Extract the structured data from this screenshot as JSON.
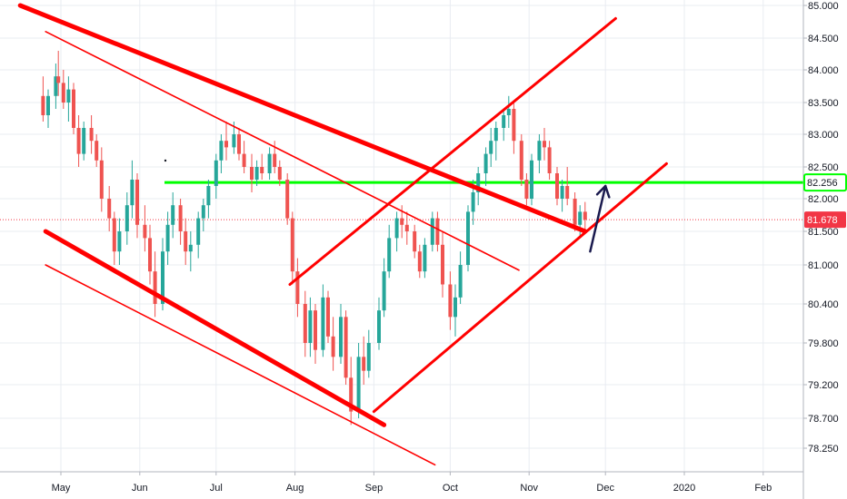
{
  "chart_data": {
    "type": "candlestick",
    "x_axis": {
      "labels": [
        "May",
        "Jun",
        "Jul",
        "Aug",
        "Sep",
        "Oct",
        "Nov",
        "Dec",
        "2020",
        "Feb"
      ],
      "grid": true
    },
    "y_axis": {
      "position": "right",
      "ylim": [
        77.9,
        85.0
      ],
      "tick_labels": [
        "85.000",
        "84.500",
        "84.000",
        "83.500",
        "83.000",
        "82.500",
        "82.000",
        "81.500",
        "81.000",
        "80.400",
        "79.800",
        "79.200",
        "78.700",
        "78.250"
      ],
      "tick_values": [
        85.0,
        84.5,
        84.0,
        83.5,
        83.0,
        82.5,
        82.0,
        81.5,
        81.0,
        80.4,
        79.8,
        79.2,
        78.7,
        78.25
      ],
      "grid": true
    },
    "price_badges": [
      {
        "value": 82.256,
        "label": "82.256",
        "style": "outline",
        "color": "#00ff00"
      },
      {
        "value": 81.678,
        "label": "81.678",
        "style": "filled",
        "color": "#f23645"
      }
    ],
    "horizontal_levels": [
      {
        "value": 82.256,
        "color": "#00ff00",
        "style": "solid"
      },
      {
        "value": 81.678,
        "color": "#f23645",
        "style": "dotted"
      }
    ],
    "colors": {
      "up": "#26a69a",
      "down": "#ef5350",
      "trendline": "#ff0000",
      "arrow": "#1a1a4e",
      "grid": "#e9ecf2",
      "axis_text": "#131722"
    },
    "annotations": [
      {
        "type": "trendline",
        "name": "descending-channel-thick-upper",
        "from": [
          "Apr 15",
          85.0
        ],
        "to": [
          "Nov 23",
          81.5
        ],
        "weight": "thick"
      },
      {
        "type": "trendline",
        "name": "descending-channel-thin-upper",
        "from": [
          "Apr 25",
          84.6
        ],
        "to": [
          "Oct 28",
          80.92
        ],
        "weight": "thin"
      },
      {
        "type": "trendline",
        "name": "descending-channel-thick-lower",
        "from": [
          "Apr 25",
          81.5
        ],
        "to": [
          "Sep 05",
          78.6
        ],
        "weight": "thick"
      },
      {
        "type": "trendline",
        "name": "descending-channel-thin-lower",
        "from": [
          "Apr 25",
          81.0
        ],
        "to": [
          "Sep 25",
          78.0
        ],
        "weight": "thin"
      },
      {
        "type": "trendline",
        "name": "ascending-channel-upper",
        "from": [
          "Jul 30",
          80.7
        ],
        "to": [
          "Dec 05",
          84.8
        ],
        "weight": "normal"
      },
      {
        "type": "trendline",
        "name": "ascending-channel-lower",
        "from": [
          "Sep 01",
          78.8
        ],
        "to": [
          "Dec 25",
          82.55
        ],
        "weight": "normal"
      },
      {
        "type": "arrow",
        "name": "bounce-arrow",
        "from": [
          "Nov 25",
          81.2
        ],
        "to": [
          "Dec 01",
          82.2
        ]
      }
    ],
    "candles": [
      {
        "date": "Apr 24",
        "open": 83.6,
        "high": 83.9,
        "low": 83.2,
        "close": 83.3
      },
      {
        "date": "Apr 26",
        "open": 83.3,
        "high": 83.7,
        "low": 83.1,
        "close": 83.6
      },
      {
        "date": "Apr 29",
        "open": 83.6,
        "high": 84.1,
        "low": 83.4,
        "close": 83.9
      },
      {
        "date": "Apr 30",
        "open": 83.9,
        "high": 84.3,
        "low": 83.6,
        "close": 83.8
      },
      {
        "date": "May 02",
        "open": 83.8,
        "high": 84.0,
        "low": 83.4,
        "close": 83.5
      },
      {
        "date": "May 04",
        "open": 83.5,
        "high": 83.9,
        "low": 83.2,
        "close": 83.7
      },
      {
        "date": "May 06",
        "open": 83.7,
        "high": 83.8,
        "low": 83.0,
        "close": 83.1
      },
      {
        "date": "May 08",
        "open": 83.1,
        "high": 83.3,
        "low": 82.5,
        "close": 82.7
      },
      {
        "date": "May 10",
        "open": 82.7,
        "high": 83.2,
        "low": 82.6,
        "close": 83.1
      },
      {
        "date": "May 13",
        "open": 83.1,
        "high": 83.3,
        "low": 82.7,
        "close": 82.9
      },
      {
        "date": "May 15",
        "open": 82.9,
        "high": 83.0,
        "low": 82.5,
        "close": 82.6
      },
      {
        "date": "May 17",
        "open": 82.6,
        "high": 82.8,
        "low": 81.8,
        "close": 82.0
      },
      {
        "date": "May 20",
        "open": 82.0,
        "high": 82.2,
        "low": 81.5,
        "close": 81.7
      },
      {
        "date": "May 22",
        "open": 81.7,
        "high": 81.8,
        "low": 81.0,
        "close": 81.2
      },
      {
        "date": "May 24",
        "open": 81.2,
        "high": 81.7,
        "low": 81.0,
        "close": 81.5
      },
      {
        "date": "May 27",
        "open": 81.5,
        "high": 82.1,
        "low": 81.3,
        "close": 81.9
      },
      {
        "date": "May 29",
        "open": 81.9,
        "high": 82.6,
        "low": 81.7,
        "close": 82.3
      },
      {
        "date": "May 31",
        "open": 82.3,
        "high": 82.4,
        "low": 81.4,
        "close": 81.6
      },
      {
        "date": "Jun 03",
        "open": 81.6,
        "high": 81.9,
        "low": 81.2,
        "close": 81.4
      },
      {
        "date": "Jun 05",
        "open": 81.4,
        "high": 81.6,
        "low": 80.7,
        "close": 80.9
      },
      {
        "date": "Jun 07",
        "open": 80.9,
        "high": 81.2,
        "low": 80.2,
        "close": 80.4
      },
      {
        "date": "Jun 10",
        "open": 80.4,
        "high": 81.4,
        "low": 80.3,
        "close": 81.2
      },
      {
        "date": "Jun 12",
        "open": 81.2,
        "high": 81.8,
        "low": 81.0,
        "close": 81.6
      },
      {
        "date": "Jun 14",
        "open": 81.6,
        "high": 82.1,
        "low": 81.4,
        "close": 81.9
      },
      {
        "date": "Jun 17",
        "open": 81.9,
        "high": 82.0,
        "low": 81.3,
        "close": 81.5
      },
      {
        "date": "Jun 19",
        "open": 81.5,
        "high": 81.7,
        "low": 81.0,
        "close": 81.2
      },
      {
        "date": "Jun 21",
        "open": 81.2,
        "high": 81.5,
        "low": 80.9,
        "close": 81.3
      },
      {
        "date": "Jun 24",
        "open": 81.3,
        "high": 81.8,
        "low": 81.1,
        "close": 81.7
      },
      {
        "date": "Jun 26",
        "open": 81.7,
        "high": 82.0,
        "low": 81.5,
        "close": 81.9
      },
      {
        "date": "Jun 28",
        "open": 81.9,
        "high": 82.3,
        "low": 81.7,
        "close": 82.2
      },
      {
        "date": "Jul 01",
        "open": 82.2,
        "high": 82.7,
        "low": 82.0,
        "close": 82.6
      },
      {
        "date": "Jul 03",
        "open": 82.6,
        "high": 83.0,
        "low": 82.4,
        "close": 82.9
      },
      {
        "date": "Jul 05",
        "open": 82.9,
        "high": 83.2,
        "low": 82.6,
        "close": 82.8
      },
      {
        "date": "Jul 08",
        "open": 82.8,
        "high": 83.2,
        "low": 82.7,
        "close": 83.0
      },
      {
        "date": "Jul 10",
        "open": 83.0,
        "high": 83.1,
        "low": 82.6,
        "close": 82.7
      },
      {
        "date": "Jul 12",
        "open": 82.7,
        "high": 82.9,
        "low": 82.4,
        "close": 82.5
      },
      {
        "date": "Jul 15",
        "open": 82.5,
        "high": 82.7,
        "low": 82.1,
        "close": 82.3
      },
      {
        "date": "Jul 17",
        "open": 82.3,
        "high": 82.6,
        "low": 82.2,
        "close": 82.5
      },
      {
        "date": "Jul 19",
        "open": 82.5,
        "high": 82.7,
        "low": 82.3,
        "close": 82.4
      },
      {
        "date": "Jul 22",
        "open": 82.4,
        "high": 82.8,
        "low": 82.3,
        "close": 82.7
      },
      {
        "date": "Jul 24",
        "open": 82.7,
        "high": 82.9,
        "low": 82.4,
        "close": 82.5
      },
      {
        "date": "Jul 26",
        "open": 82.5,
        "high": 82.6,
        "low": 82.2,
        "close": 82.3
      },
      {
        "date": "Jul 29",
        "open": 82.3,
        "high": 82.4,
        "low": 81.6,
        "close": 81.7
      },
      {
        "date": "Jul 31",
        "open": 81.7,
        "high": 81.8,
        "low": 80.7,
        "close": 80.9
      },
      {
        "date": "Aug 02",
        "open": 80.9,
        "high": 81.1,
        "low": 80.2,
        "close": 80.4
      },
      {
        "date": "Aug 05",
        "open": 80.4,
        "high": 80.6,
        "low": 79.6,
        "close": 79.8
      },
      {
        "date": "Aug 07",
        "open": 79.8,
        "high": 80.5,
        "low": 79.6,
        "close": 80.3
      },
      {
        "date": "Aug 09",
        "open": 80.3,
        "high": 80.4,
        "low": 79.5,
        "close": 79.7
      },
      {
        "date": "Aug 12",
        "open": 79.7,
        "high": 80.7,
        "low": 79.6,
        "close": 80.5
      },
      {
        "date": "Aug 14",
        "open": 80.5,
        "high": 80.6,
        "low": 79.8,
        "close": 79.9
      },
      {
        "date": "Aug 16",
        "open": 79.9,
        "high": 80.2,
        "low": 79.4,
        "close": 79.6
      },
      {
        "date": "Aug 19",
        "open": 79.6,
        "high": 80.4,
        "low": 79.5,
        "close": 80.2
      },
      {
        "date": "Aug 21",
        "open": 80.2,
        "high": 80.3,
        "low": 79.2,
        "close": 79.3
      },
      {
        "date": "Aug 23",
        "open": 79.3,
        "high": 79.6,
        "low": 78.6,
        "close": 78.8
      },
      {
        "date": "Aug 26",
        "open": 78.8,
        "high": 79.8,
        "low": 78.7,
        "close": 79.6
      },
      {
        "date": "Aug 28",
        "open": 79.6,
        "high": 79.9,
        "low": 79.2,
        "close": 79.4
      },
      {
        "date": "Aug 30",
        "open": 79.4,
        "high": 80.0,
        "low": 79.3,
        "close": 79.8
      },
      {
        "date": "Sep 03",
        "open": 79.8,
        "high": 80.5,
        "low": 79.7,
        "close": 80.3
      },
      {
        "date": "Sep 05",
        "open": 80.3,
        "high": 81.1,
        "low": 80.2,
        "close": 80.9
      },
      {
        "date": "Sep 07",
        "open": 80.9,
        "high": 81.6,
        "low": 80.8,
        "close": 81.4
      },
      {
        "date": "Sep 10",
        "open": 81.4,
        "high": 81.8,
        "low": 81.2,
        "close": 81.7
      },
      {
        "date": "Sep 12",
        "open": 81.7,
        "high": 81.9,
        "low": 81.4,
        "close": 81.6
      },
      {
        "date": "Sep 14",
        "open": 81.6,
        "high": 81.8,
        "low": 81.3,
        "close": 81.5
      },
      {
        "date": "Sep 17",
        "open": 81.5,
        "high": 81.6,
        "low": 81.1,
        "close": 81.2
      },
      {
        "date": "Sep 19",
        "open": 81.2,
        "high": 81.3,
        "low": 80.8,
        "close": 80.9
      },
      {
        "date": "Sep 21",
        "open": 80.9,
        "high": 81.4,
        "low": 80.8,
        "close": 81.3
      },
      {
        "date": "Sep 24",
        "open": 81.3,
        "high": 81.8,
        "low": 81.2,
        "close": 81.7
      },
      {
        "date": "Sep 26",
        "open": 81.7,
        "high": 81.8,
        "low": 81.2,
        "close": 81.3
      },
      {
        "date": "Sep 28",
        "open": 81.3,
        "high": 81.5,
        "low": 80.5,
        "close": 80.7
      },
      {
        "date": "Oct 01",
        "open": 80.7,
        "high": 80.9,
        "low": 80.0,
        "close": 80.2
      },
      {
        "date": "Oct 03",
        "open": 80.2,
        "high": 80.7,
        "low": 79.9,
        "close": 80.5
      },
      {
        "date": "Oct 05",
        "open": 80.5,
        "high": 81.2,
        "low": 80.4,
        "close": 81.0
      },
      {
        "date": "Oct 08",
        "open": 81.0,
        "high": 81.9,
        "low": 80.9,
        "close": 81.8
      },
      {
        "date": "Oct 10",
        "open": 81.8,
        "high": 82.3,
        "low": 81.6,
        "close": 82.1
      },
      {
        "date": "Oct 12",
        "open": 82.1,
        "high": 82.5,
        "low": 81.9,
        "close": 82.4
      },
      {
        "date": "Oct 15",
        "open": 82.4,
        "high": 82.8,
        "low": 82.2,
        "close": 82.7
      },
      {
        "date": "Oct 17",
        "open": 82.7,
        "high": 83.1,
        "low": 82.5,
        "close": 82.9
      },
      {
        "date": "Oct 19",
        "open": 82.9,
        "high": 83.2,
        "low": 82.6,
        "close": 83.1
      },
      {
        "date": "Oct 22",
        "open": 83.1,
        "high": 83.4,
        "low": 82.9,
        "close": 83.3
      },
      {
        "date": "Oct 24",
        "open": 83.3,
        "high": 83.6,
        "low": 83.1,
        "close": 83.4
      },
      {
        "date": "Oct 26",
        "open": 83.4,
        "high": 83.5,
        "low": 82.7,
        "close": 82.9
      },
      {
        "date": "Oct 29",
        "open": 82.9,
        "high": 83.0,
        "low": 82.2,
        "close": 82.3
      },
      {
        "date": "Oct 31",
        "open": 82.3,
        "high": 82.4,
        "low": 81.9,
        "close": 82.0
      },
      {
        "date": "Nov 02",
        "open": 82.0,
        "high": 82.7,
        "low": 81.9,
        "close": 82.6
      },
      {
        "date": "Nov 05",
        "open": 82.6,
        "high": 83.0,
        "low": 82.4,
        "close": 82.9
      },
      {
        "date": "Nov 07",
        "open": 82.9,
        "high": 83.1,
        "low": 82.6,
        "close": 82.8
      },
      {
        "date": "Nov 09",
        "open": 82.8,
        "high": 82.9,
        "low": 82.3,
        "close": 82.4
      },
      {
        "date": "Nov 12",
        "open": 82.4,
        "high": 82.5,
        "low": 81.9,
        "close": 82.0
      },
      {
        "date": "Nov 14",
        "open": 82.0,
        "high": 82.3,
        "low": 81.8,
        "close": 82.2
      },
      {
        "date": "Nov 16",
        "open": 82.2,
        "high": 82.5,
        "low": 81.9,
        "close": 82.0
      },
      {
        "date": "Nov 19",
        "open": 82.0,
        "high": 82.1,
        "low": 81.5,
        "close": 81.6
      },
      {
        "date": "Nov 21",
        "open": 81.6,
        "high": 81.9,
        "low": 81.4,
        "close": 81.8
      },
      {
        "date": "Nov 23",
        "open": 81.8,
        "high": 81.95,
        "low": 81.5,
        "close": 81.678
      }
    ]
  }
}
